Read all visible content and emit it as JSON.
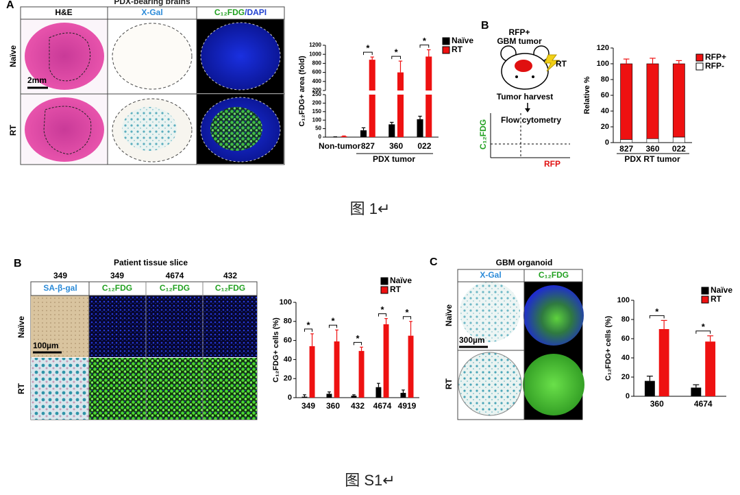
{
  "figure_1": {
    "panel_a": {
      "label": "A",
      "title": "PDX-bearing brains",
      "columns": [
        "H&E",
        "X-Gal"
      ],
      "column_3": [
        "C₁₂FDG",
        "/DAPI"
      ],
      "rows": [
        "Naïve",
        "RT"
      ],
      "scale_bar": "2mm"
    },
    "panel_b": {
      "label": "B",
      "diagram": {
        "tumor": "RFP+",
        "tumor_type": "GBM tumor",
        "treatment": "RT",
        "step": "Tumor harvest",
        "assay": "Flow cytometry",
        "y_axis": "C₁₂FDG",
        "x_axis": "RFP"
      }
    },
    "caption": "图 1↵"
  },
  "figure_s1": {
    "panel_b": {
      "label": "B",
      "title": "Patient tissue slice",
      "samples": [
        "349",
        "349",
        "4674",
        "432"
      ],
      "columns": [
        "SA-β-gal",
        "C₁₂FDG",
        "C₁₂FDG",
        "C₁₂FDG"
      ],
      "rows": [
        "Naïve",
        "RT"
      ],
      "scale_bar": "100µm"
    },
    "panel_c": {
      "label": "C",
      "title": "GBM organoid",
      "columns": [
        "X-Gal",
        "C₁₂FDG"
      ],
      "rows": [
        "Naïve",
        "RT"
      ],
      "scale_bar": "300µm"
    },
    "caption": "图 S1↵"
  },
  "chart_data": [
    {
      "type": "bar",
      "y_label": "C₁₂FDG+ area (fold)",
      "x_label": "PDX tumor",
      "categories": [
        "Non-tumor",
        "827",
        "360",
        "022"
      ],
      "series": [
        {
          "name": "Naïve",
          "color": "#000000",
          "values": [
            1,
            40,
            75,
            105
          ],
          "errors": [
            1,
            15,
            12,
            18
          ]
        },
        {
          "name": "RT",
          "color": "#ee1111",
          "values": [
            5,
            880,
            600,
            950
          ],
          "errors": [
            2,
            60,
            250,
            150
          ]
        }
      ],
      "segments": [
        {
          "ylim": [
            0,
            250
          ],
          "yticks": [
            0,
            50,
            100,
            150,
            200,
            250
          ]
        },
        {
          "ylim": [
            200,
            1200
          ],
          "yticks": [
            200,
            400,
            600,
            800,
            1000,
            1200
          ]
        }
      ],
      "annotations": [
        null,
        "*",
        "*",
        "*"
      ]
    },
    {
      "type": "stacked_bar",
      "y_label": "Relative %",
      "x_label": "PDX RT tumor",
      "categories": [
        "827",
        "360",
        "022"
      ],
      "series": [
        {
          "name": "RFP-",
          "color": "#ffffff",
          "values": [
            4,
            5,
            7
          ]
        },
        {
          "name": "RFP+",
          "color": "#ee1111",
          "values": [
            96,
            95,
            93
          ],
          "errors": [
            6,
            7,
            4
          ]
        }
      ],
      "ylim": [
        0,
        120
      ],
      "yticks": [
        0,
        20,
        40,
        60,
        80,
        100,
        120
      ]
    },
    {
      "type": "bar",
      "y_label": "C₁₂FDG+ cells (%)",
      "categories": [
        "349",
        "360",
        "432",
        "4674",
        "4919"
      ],
      "series": [
        {
          "name": "Naïve",
          "color": "#000000",
          "values": [
            1,
            4,
            2,
            11,
            5
          ],
          "errors": [
            2,
            2,
            1,
            4,
            3
          ]
        },
        {
          "name": "RT",
          "color": "#ee1111",
          "values": [
            54,
            59,
            49,
            77,
            65
          ],
          "errors": [
            13,
            12,
            4,
            6,
            15
          ]
        }
      ],
      "ylim": [
        0,
        100
      ],
      "yticks": [
        0,
        20,
        40,
        60,
        80,
        100
      ],
      "annotations": [
        "*",
        "*",
        "*",
        "*",
        "*"
      ]
    },
    {
      "type": "bar",
      "y_label": "C₁₂FDG+ cells (%)",
      "categories": [
        "360",
        "4674"
      ],
      "series": [
        {
          "name": "Naïve",
          "color": "#000000",
          "values": [
            16,
            9
          ],
          "errors": [
            5,
            3
          ]
        },
        {
          "name": "RT",
          "color": "#ee1111",
          "values": [
            70,
            57
          ],
          "errors": [
            9,
            6
          ]
        }
      ],
      "ylim": [
        0,
        100
      ],
      "yticks": [
        0,
        20,
        40,
        60,
        80,
        100
      ],
      "annotations": [
        "*",
        "*"
      ]
    }
  ]
}
